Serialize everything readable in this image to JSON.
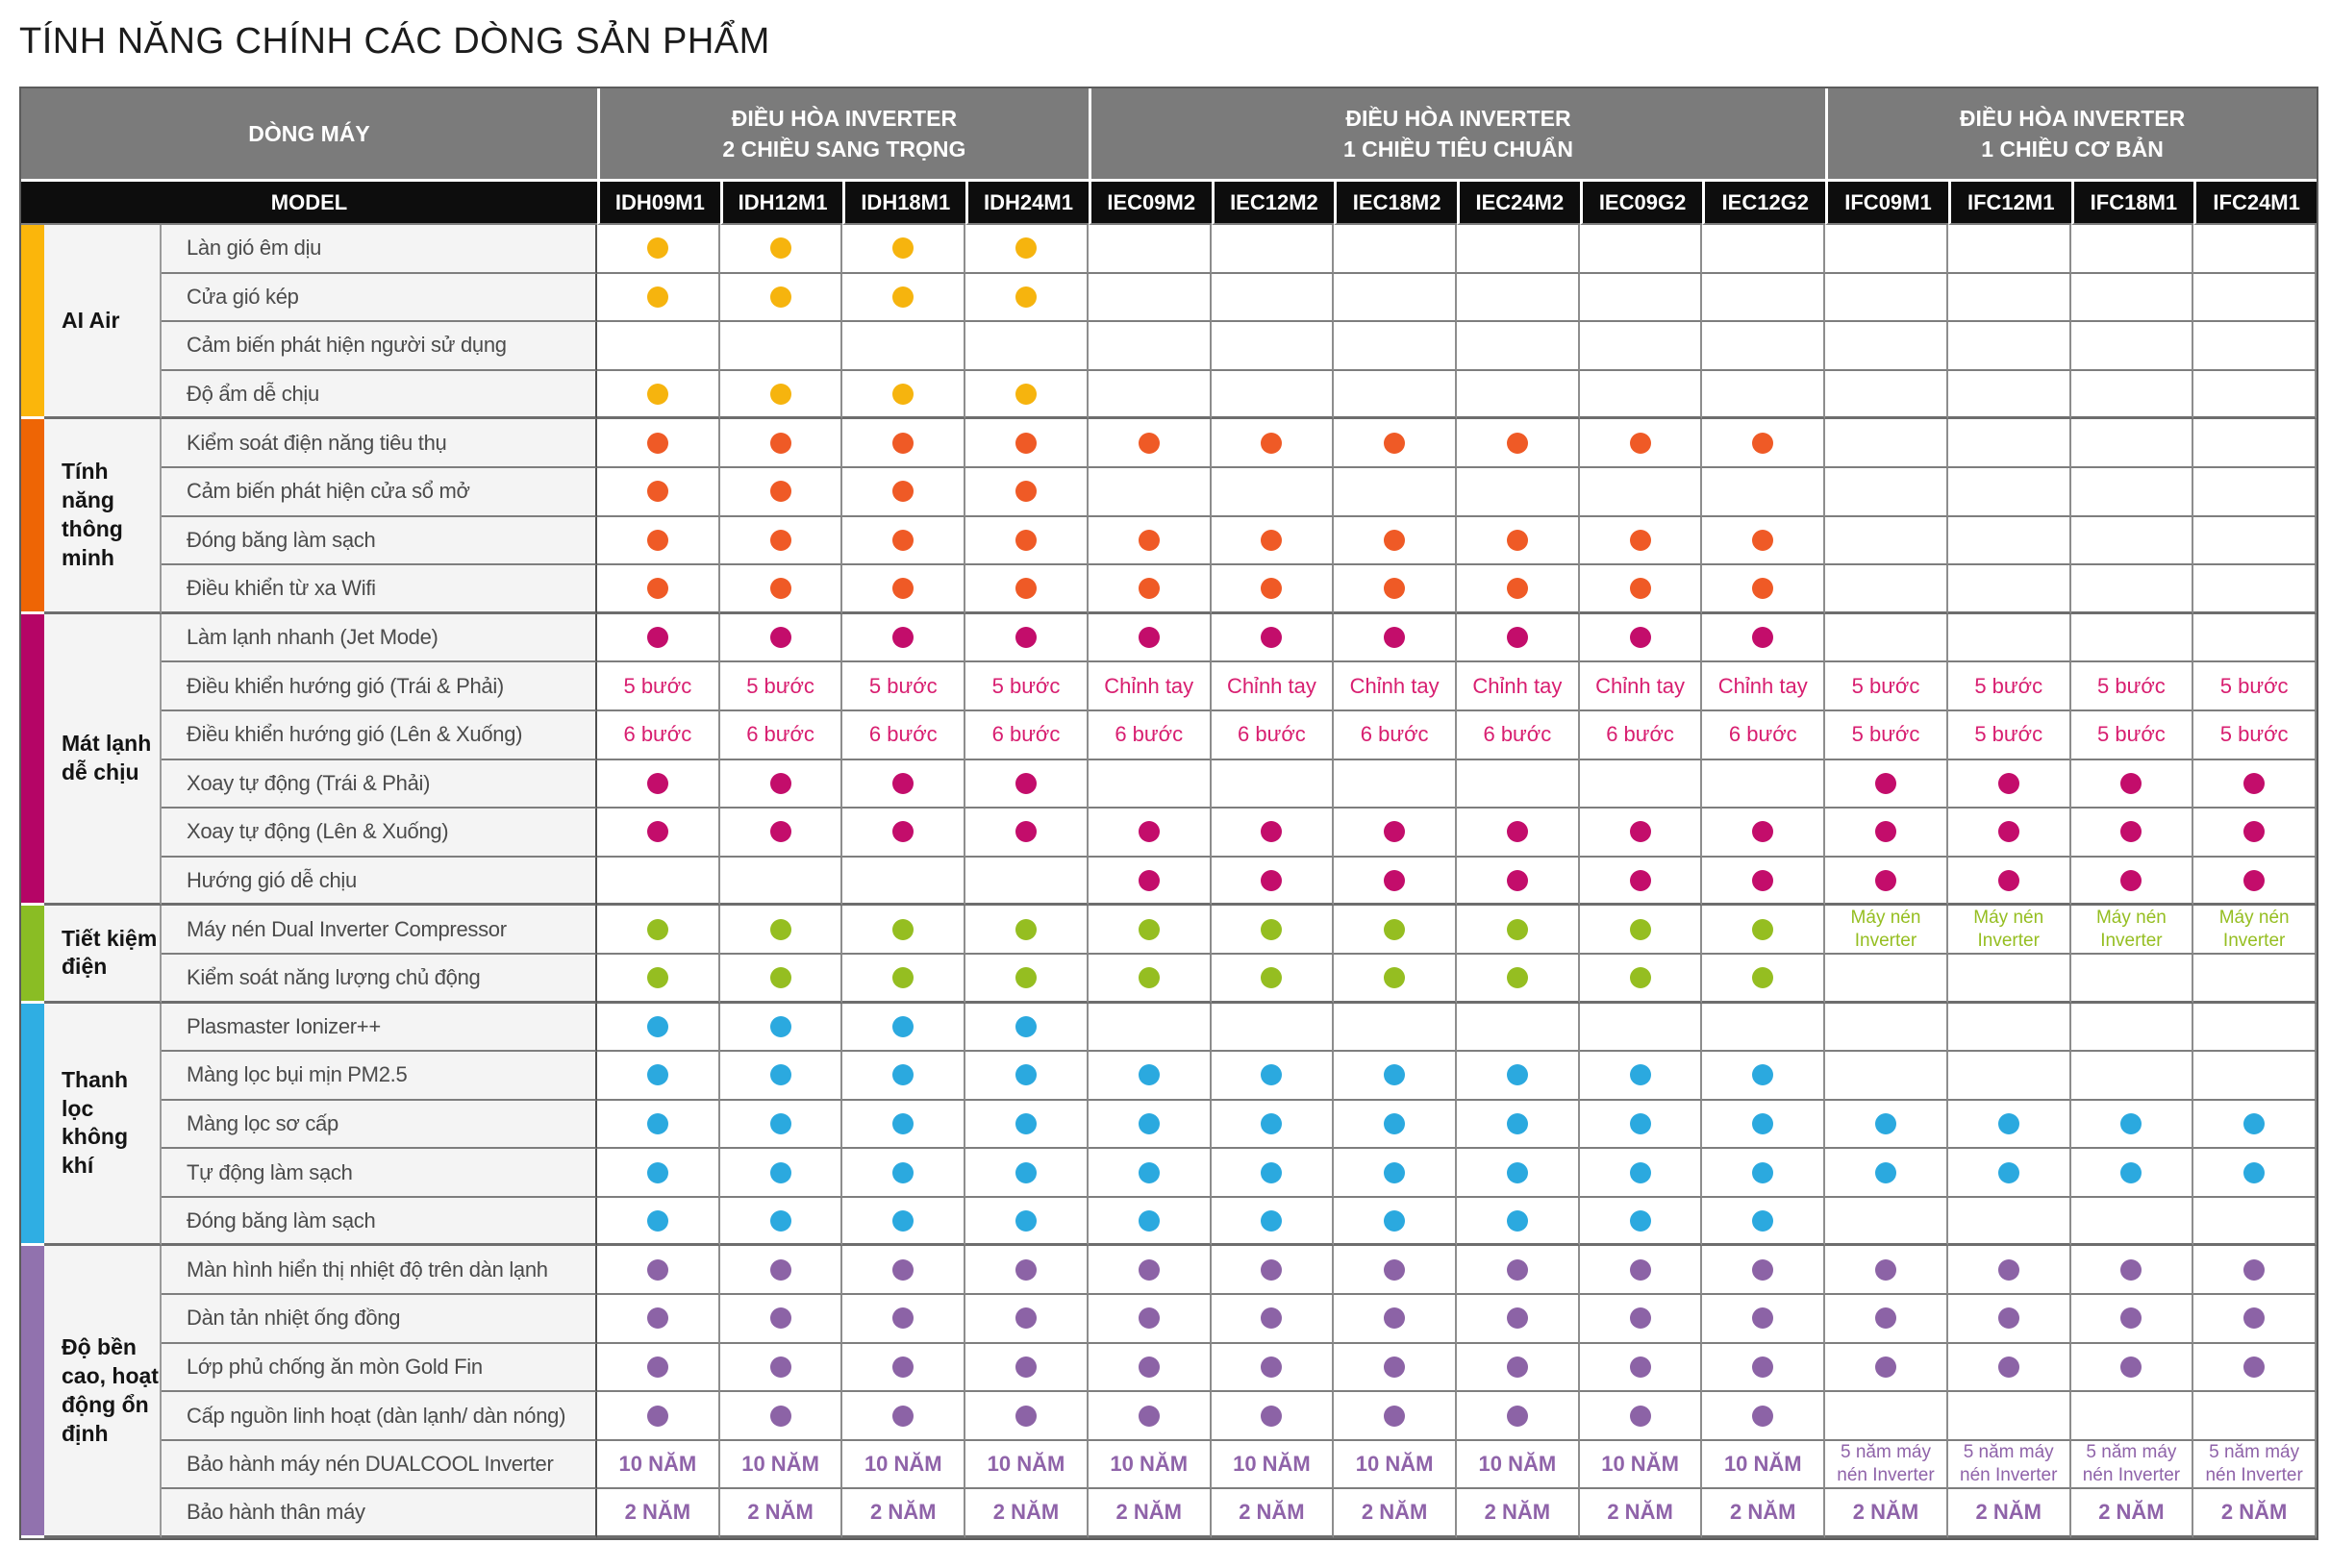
{
  "page": {
    "title": "TÍNH NĂNG CHÍNH CÁC DÒNG SẢN PHẨM"
  },
  "colors": {
    "header_gray": "#7b7b7b",
    "model_row_black": "#0d0d0d",
    "label_cell_bg": "#f4f4f4",
    "grid_line": "#7e7e7e",
    "title_text": "#1c1c1c",
    "feature_text": "#4b4b4b"
  },
  "header": {
    "row_label": "DÒNG MÁY",
    "model_label": "MODEL",
    "groups": [
      {
        "label_line1": "ĐIỀU HÒA INVERTER",
        "label_line2": "2 CHIỀU SANG TRỌNG",
        "models": [
          "IDH09M1",
          "IDH12M1",
          "IDH18M1",
          "IDH24M1"
        ]
      },
      {
        "label_line1": "ĐIỀU HÒA INVERTER",
        "label_line2": "1 CHIỀU TIÊU CHUẨN",
        "models": [
          "IEC09M2",
          "IEC12M2",
          "IEC18M2",
          "IEC24M2",
          "IEC09G2",
          "IEC12G2"
        ]
      },
      {
        "label_line1": "ĐIỀU HÒA INVERTER",
        "label_line2": "1 CHIỀU CƠ BẢN",
        "models": [
          "IFC09M1",
          "IFC12M1",
          "IFC18M1",
          "IFC24M1"
        ]
      }
    ]
  },
  "sections": [
    {
      "name": "AI Air",
      "dot": "#F6B40E",
      "bar": "#FBB60B",
      "rows": [
        {
          "label": "Làn gió êm dịu",
          "cells": [
            "D",
            "D",
            "D",
            "D",
            "",
            "",
            "",
            "",
            "",
            "",
            "",
            "",
            "",
            ""
          ]
        },
        {
          "label": "Cửa gió kép",
          "cells": [
            "D",
            "D",
            "D",
            "D",
            "",
            "",
            "",
            "",
            "",
            "",
            "",
            "",
            "",
            ""
          ]
        },
        {
          "label": "Cảm biến phát hiện người sử dụng",
          "cells": [
            "",
            "",
            "",
            "",
            "",
            "",
            "",
            "",
            "",
            "",
            "",
            "",
            "",
            ""
          ]
        },
        {
          "label": "Độ ẩm dễ chịu",
          "cells": [
            "D",
            "D",
            "D",
            "D",
            "",
            "",
            "",
            "",
            "",
            "",
            "",
            "",
            "",
            ""
          ]
        }
      ]
    },
    {
      "name": "Tính năng thông minh",
      "dot": "#EF5A26",
      "bar": "#EE6505",
      "rows": [
        {
          "label": "Kiểm soát điện năng tiêu thụ",
          "cells": [
            "D",
            "D",
            "D",
            "D",
            "D",
            "D",
            "D",
            "D",
            "D",
            "D",
            "",
            "",
            "",
            ""
          ]
        },
        {
          "label": "Cảm biến phát hiện cửa sổ mở",
          "cells": [
            "D",
            "D",
            "D",
            "D",
            "",
            "",
            "",
            "",
            "",
            "",
            "",
            "",
            "",
            ""
          ]
        },
        {
          "label": "Đóng băng làm sạch",
          "cells": [
            "D",
            "D",
            "D",
            "D",
            "D",
            "D",
            "D",
            "D",
            "D",
            "D",
            "",
            "",
            "",
            ""
          ]
        },
        {
          "label": "Điều khiển từ xa Wifi",
          "cells": [
            "D",
            "D",
            "D",
            "D",
            "D",
            "D",
            "D",
            "D",
            "D",
            "D",
            "",
            "",
            "",
            ""
          ]
        }
      ]
    },
    {
      "name": "Mát lạnh dễ chịu",
      "dot": "#C30D6B",
      "bar": "#B50566",
      "text": "#D81E70",
      "rows": [
        {
          "label": "Làm lạnh nhanh (Jet Mode)",
          "cells": [
            "D",
            "D",
            "D",
            "D",
            "D",
            "D",
            "D",
            "D",
            "D",
            "D",
            "",
            "",
            "",
            ""
          ]
        },
        {
          "label": "Điều khiển hướng gió (Trái & Phải)",
          "cells": [
            "5 bước",
            "5 bước",
            "5 bước",
            "5 bước",
            "Chỉnh tay",
            "Chỉnh tay",
            "Chỉnh tay",
            "Chỉnh tay",
            "Chỉnh tay",
            "Chỉnh tay",
            "5 bước",
            "5 bước",
            "5 bước",
            "5 bước"
          ]
        },
        {
          "label": "Điều khiển hướng gió (Lên & Xuống)",
          "cells": [
            "6 bước",
            "6 bước",
            "6 bước",
            "6 bước",
            "6 bước",
            "6 bước",
            "6 bước",
            "6 bước",
            "6 bước",
            "6 bước",
            "5 bước",
            "5 bước",
            "5 bước",
            "5 bước"
          ]
        },
        {
          "label": "Xoay tự động (Trái & Phải)",
          "cells": [
            "D",
            "D",
            "D",
            "D",
            "",
            "",
            "",
            "",
            "",
            "",
            "D",
            "D",
            "D",
            "D"
          ]
        },
        {
          "label": "Xoay tự động (Lên & Xuống)",
          "cells": [
            "D",
            "D",
            "D",
            "D",
            "D",
            "D",
            "D",
            "D",
            "D",
            "D",
            "D",
            "D",
            "D",
            "D"
          ]
        },
        {
          "label": "Hướng gió dễ chịu",
          "cells": [
            "",
            "",
            "",
            "",
            "D",
            "D",
            "D",
            "D",
            "D",
            "D",
            "D",
            "D",
            "D",
            "D"
          ]
        }
      ]
    },
    {
      "name": "Tiết kiệm điện",
      "dot": "#95BE21",
      "bar": "#8ABD24",
      "rows": [
        {
          "label": "Máy nén Dual Inverter Compressor",
          "cells": [
            "D",
            "D",
            "D",
            "D",
            "D",
            "D",
            "D",
            "D",
            "D",
            "D",
            {
              "t": "Máy nén\nInverter",
              "s": "small"
            },
            {
              "t": "Máy nén\nInverter",
              "s": "small"
            },
            {
              "t": "Máy nén\nInverter",
              "s": "small"
            },
            {
              "t": "Máy nén\nInverter",
              "s": "small"
            }
          ]
        },
        {
          "label": "Kiểm soát năng lượng chủ động",
          "cells": [
            "D",
            "D",
            "D",
            "D",
            "D",
            "D",
            "D",
            "D",
            "D",
            "D",
            "",
            "",
            "",
            ""
          ]
        }
      ]
    },
    {
      "name": "Thanh lọc không khí",
      "dot": "#2BA9DF",
      "bar": "#2FAEE3",
      "rows": [
        {
          "label": "Plasmaster Ionizer++",
          "cells": [
            "D",
            "D",
            "D",
            "D",
            "",
            "",
            "",
            "",
            "",
            "",
            "",
            "",
            "",
            ""
          ]
        },
        {
          "label": "Màng lọc bụi mịn PM2.5",
          "cells": [
            "D",
            "D",
            "D",
            "D",
            "D",
            "D",
            "D",
            "D",
            "D",
            "D",
            "",
            "",
            "",
            ""
          ]
        },
        {
          "label": "Màng lọc sơ cấp",
          "cells": [
            "D",
            "D",
            "D",
            "D",
            "D",
            "D",
            "D",
            "D",
            "D",
            "D",
            "D",
            "D",
            "D",
            "D"
          ]
        },
        {
          "label": "Tự động làm sạch",
          "cells": [
            "D",
            "D",
            "D",
            "D",
            "D",
            "D",
            "D",
            "D",
            "D",
            "D",
            "D",
            "D",
            "D",
            "D"
          ]
        },
        {
          "label": "Đóng băng làm sạch",
          "cells": [
            "D",
            "D",
            "D",
            "D",
            "D",
            "D",
            "D",
            "D",
            "D",
            "D",
            "",
            "",
            "",
            ""
          ]
        }
      ]
    },
    {
      "name": "Độ bền cao, hoạt động ổn định",
      "dot": "#8C63A6",
      "bar": "#9172AE",
      "text": "#8F63A9",
      "rows": [
        {
          "label": "Màn hình hiển thị nhiệt độ trên dàn lạnh",
          "cells": [
            "D",
            "D",
            "D",
            "D",
            "D",
            "D",
            "D",
            "D",
            "D",
            "D",
            "D",
            "D",
            "D",
            "D"
          ]
        },
        {
          "label": "Dàn tản nhiệt ống đồng",
          "cells": [
            "D",
            "D",
            "D",
            "D",
            "D",
            "D",
            "D",
            "D",
            "D",
            "D",
            "D",
            "D",
            "D",
            "D"
          ]
        },
        {
          "label": "Lớp phủ chống ăn mòn Gold Fin",
          "cells": [
            "D",
            "D",
            "D",
            "D",
            "D",
            "D",
            "D",
            "D",
            "D",
            "D",
            "D",
            "D",
            "D",
            "D"
          ]
        },
        {
          "label": "Cấp nguồn linh hoạt (dàn lạnh/ dàn nóng)",
          "cells": [
            "D",
            "D",
            "D",
            "D",
            "D",
            "D",
            "D",
            "D",
            "D",
            "D",
            "",
            "",
            "",
            ""
          ]
        },
        {
          "label": "Bảo hành máy nén DUALCOOL Inverter",
          "cells": [
            {
              "t": "10 NĂM",
              "s": "em"
            },
            {
              "t": "10 NĂM",
              "s": "em"
            },
            {
              "t": "10 NĂM",
              "s": "em"
            },
            {
              "t": "10 NĂM",
              "s": "em"
            },
            {
              "t": "10 NĂM",
              "s": "em"
            },
            {
              "t": "10 NĂM",
              "s": "em"
            },
            {
              "t": "10 NĂM",
              "s": "em"
            },
            {
              "t": "10 NĂM",
              "s": "em"
            },
            {
              "t": "10 NĂM",
              "s": "em"
            },
            {
              "t": "10 NĂM",
              "s": "em"
            },
            {
              "t": "5 năm máy\nnén Inverter",
              "s": "small"
            },
            {
              "t": "5 năm máy\nnén Inverter",
              "s": "small"
            },
            {
              "t": "5 năm máy\nnén Inverter",
              "s": "small"
            },
            {
              "t": "5 năm máy\nnén Inverter",
              "s": "small"
            }
          ]
        },
        {
          "label": "Bảo hành thân máy",
          "cells": [
            {
              "t": "2 NĂM",
              "s": "em"
            },
            {
              "t": "2 NĂM",
              "s": "em"
            },
            {
              "t": "2 NĂM",
              "s": "em"
            },
            {
              "t": "2 NĂM",
              "s": "em"
            },
            {
              "t": "2 NĂM",
              "s": "em"
            },
            {
              "t": "2 NĂM",
              "s": "em"
            },
            {
              "t": "2 NĂM",
              "s": "em"
            },
            {
              "t": "2 NĂM",
              "s": "em"
            },
            {
              "t": "2 NĂM",
              "s": "em"
            },
            {
              "t": "2 NĂM",
              "s": "em"
            },
            {
              "t": "2 NĂM",
              "s": "em"
            },
            {
              "t": "2 NĂM",
              "s": "em"
            },
            {
              "t": "2 NĂM",
              "s": "em"
            },
            {
              "t": "2 NĂM",
              "s": "em"
            }
          ]
        }
      ]
    }
  ]
}
